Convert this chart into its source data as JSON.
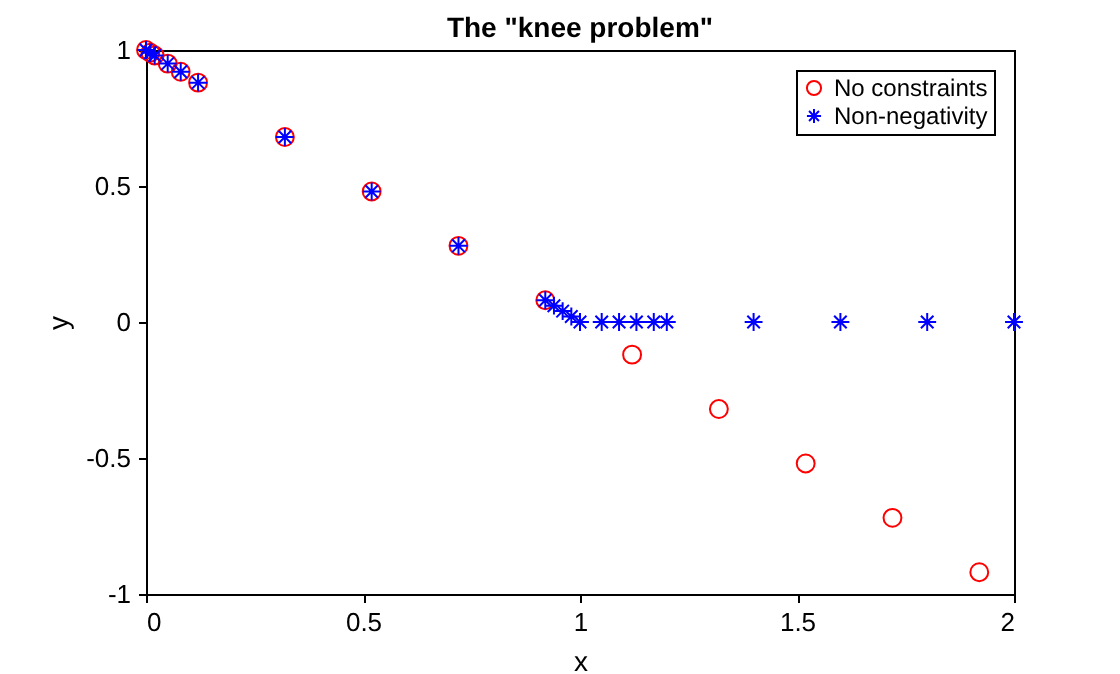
{
  "chart_data": {
    "type": "scatter",
    "title": "The \"knee problem\"",
    "xlabel": "x",
    "ylabel": "y",
    "xlim": [
      0,
      2
    ],
    "ylim": [
      -1,
      1
    ],
    "xticks": [
      0,
      0.5,
      1,
      1.5,
      2
    ],
    "yticks": [
      -1,
      -0.5,
      0,
      0.5,
      1
    ],
    "legend": "top right",
    "series": [
      {
        "name": "No constraints",
        "color": "#ff0000",
        "marker": "circle",
        "x": [
          0,
          0.01,
          0.02,
          0.05,
          0.08,
          0.12,
          0.32,
          0.52,
          0.72,
          0.92,
          1.12,
          1.32,
          1.52,
          1.72,
          1.92
        ],
        "values": [
          1,
          0.99,
          0.98,
          0.95,
          0.92,
          0.88,
          0.68,
          0.48,
          0.28,
          0.08,
          -0.12,
          -0.32,
          -0.52,
          -0.72,
          -0.92
        ]
      },
      {
        "name": "Non-negativity",
        "color": "#0000ff",
        "marker": "cross",
        "x": [
          0,
          0.01,
          0.02,
          0.05,
          0.08,
          0.12,
          0.32,
          0.52,
          0.72,
          0.92,
          0.94,
          0.96,
          0.98,
          1,
          1.05,
          1.09,
          1.13,
          1.17,
          1.2,
          1.4,
          1.6,
          1.8,
          2
        ],
        "values": [
          1,
          0.99,
          0.98,
          0.95,
          0.92,
          0.88,
          0.68,
          0.48,
          0.28,
          0.08,
          0.06,
          0.04,
          0.02,
          0,
          0,
          0,
          0,
          0,
          0,
          0,
          0,
          0,
          0
        ]
      }
    ]
  }
}
